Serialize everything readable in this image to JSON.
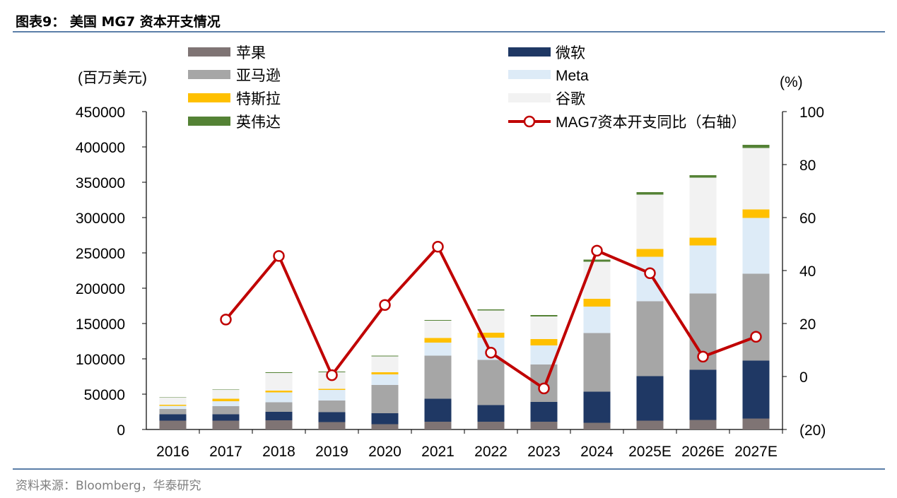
{
  "figure": {
    "title": "图表9：  美国 MG7 资本开支情况",
    "source": "资料来源：Bloomberg，华泰研究"
  },
  "chart_data": {
    "type": "bar",
    "stacked": true,
    "categories": [
      "2016",
      "2017",
      "2018",
      "2019",
      "2020",
      "2021",
      "2022",
      "2023",
      "2024",
      "2025E",
      "2026E",
      "2027E"
    ],
    "ylabel": "(百万美元)",
    "y2label": "(%)",
    "ylim": [
      0,
      450000
    ],
    "y2lim": [
      -20,
      100
    ],
    "yticks": [
      "0",
      "50000",
      "100000",
      "150000",
      "200000",
      "250000",
      "300000",
      "350000",
      "400000",
      "450000"
    ],
    "y2ticks": [
      "(20)",
      "0",
      "20",
      "40",
      "60",
      "80",
      "100"
    ],
    "y2tick_values": [
      -20,
      0,
      20,
      40,
      60,
      80,
      100
    ],
    "legend_position": "top",
    "series": [
      {
        "name": "苹果",
        "color": "#7f7474",
        "values": [
          12500,
          12500,
          13000,
          10500,
          7500,
          11000,
          11000,
          11000,
          9500,
          12500,
          13500,
          15500
        ]
      },
      {
        "name": "微软",
        "color": "#1f3864",
        "values": [
          9000,
          9000,
          12000,
          14000,
          15500,
          32500,
          23500,
          28000,
          44000,
          63000,
          71000,
          82000
        ]
      },
      {
        "name": "亚马逊",
        "color": "#a6a6a6",
        "values": [
          7500,
          11500,
          13500,
          16500,
          40000,
          61000,
          64000,
          53000,
          83000,
          106000,
          108000,
          123000
        ]
      },
      {
        "name": "Meta",
        "color": "#ddebf7",
        "values": [
          4500,
          7000,
          14000,
          15000,
          15000,
          18500,
          31500,
          27000,
          37500,
          63000,
          68000,
          79000
        ]
      },
      {
        "name": "特斯拉",
        "color": "#ffc000",
        "values": [
          1500,
          3500,
          2500,
          1500,
          3000,
          6500,
          7000,
          9000,
          11000,
          11000,
          11000,
          12000
        ]
      },
      {
        "name": "谷歌",
        "color": "#f2f2f2",
        "values": [
          10000,
          13000,
          25000,
          23500,
          22500,
          24500,
          31500,
          32000,
          52500,
          77000,
          85000,
          87000
        ]
      },
      {
        "name": "英伟达",
        "color": "#548235",
        "values": [
          500,
          500,
          1000,
          1000,
          1000,
          1000,
          1500,
          2000,
          3000,
          3500,
          3500,
          4500
        ]
      }
    ],
    "line_series": {
      "name": "MAG7资本开支同比（右轴）",
      "color": "#c00000",
      "axis": "right",
      "values": [
        null,
        21.5,
        45.5,
        0.5,
        27,
        49,
        9,
        -4.5,
        47.5,
        39,
        7.5,
        15
      ]
    }
  }
}
